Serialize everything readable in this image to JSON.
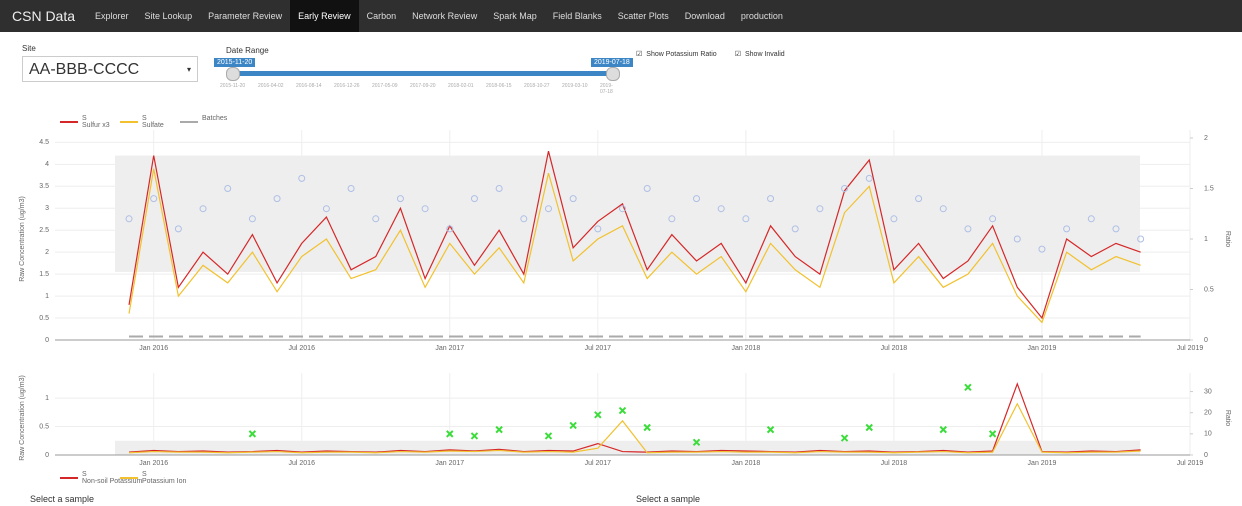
{
  "nav": {
    "brand": "CSN Data",
    "items": [
      "Explorer",
      "Site Lookup",
      "Parameter Review",
      "Early Review",
      "Carbon",
      "Network Review",
      "Spark Map",
      "Field Blanks",
      "Scatter Plots",
      "Download",
      "production"
    ],
    "active": 3
  },
  "controls": {
    "site_label": "Site",
    "site_value": "AA-BBB-CCCC",
    "date_label": "Date Range",
    "date_from": "2015-11-20",
    "date_to": "2019-07-18",
    "date_ticks": [
      "2015-11-20",
      "2016-04-02",
      "2016-08-14",
      "2016-12-26",
      "2017-05-09",
      "2017-09-20",
      "2018-02-01",
      "2018-06-15",
      "2018-10-27",
      "2019-03-10",
      "2019-07-18"
    ],
    "checkboxes": [
      "Show Potassium Ratio",
      "Show Invalid"
    ]
  },
  "footer": {
    "left": "Select a sample",
    "right": "Select a sample"
  },
  "chart_data": [
    {
      "type": "line",
      "ylabel": "Raw Concentration (ug/m3)",
      "y2label": "Ratio",
      "band": [
        1.55,
        4.2
      ],
      "x": [
        "2015-12",
        "2016-01",
        "2016-02",
        "2016-03",
        "2016-04",
        "2016-05",
        "2016-06",
        "2016-07",
        "2016-08",
        "2016-09",
        "2016-10",
        "2016-11",
        "2016-12",
        "2017-01",
        "2017-02",
        "2017-03",
        "2017-04",
        "2017-05",
        "2017-06",
        "2017-07",
        "2017-08",
        "2017-09",
        "2017-10",
        "2017-11",
        "2017-12",
        "2018-01",
        "2018-02",
        "2018-03",
        "2018-04",
        "2018-05",
        "2018-06",
        "2018-07",
        "2018-08",
        "2018-09",
        "2018-10",
        "2018-11",
        "2018-12",
        "2019-01",
        "2019-02",
        "2019-03",
        "2019-04",
        "2019-05"
      ],
      "xlim": [
        "2015-09",
        "2019-07"
      ],
      "xticks": [
        {
          "value": "2016-01",
          "label": "Jan 2016"
        },
        {
          "value": "2016-07",
          "label": "Jul 2016"
        },
        {
          "value": "2017-01",
          "label": "Jan 2017"
        },
        {
          "value": "2017-07",
          "label": "Jul 2017"
        },
        {
          "value": "2018-01",
          "label": "Jan 2018"
        },
        {
          "value": "2018-07",
          "label": "Jul 2018"
        },
        {
          "value": "2019-01",
          "label": "Jan 2019"
        },
        {
          "value": "2019-07",
          "label": "Jul 2019"
        }
      ],
      "ylim": [
        0,
        4.6
      ],
      "yticks": [
        0,
        0.5,
        1,
        1.5,
        2,
        2.5,
        3,
        3.5,
        4,
        4.5
      ],
      "y2lim": [
        0,
        2
      ],
      "y2ticks": [
        0,
        0.5,
        1,
        1.5,
        2
      ],
      "series": [
        {
          "group": "S",
          "name": "Sulfur x3",
          "color": "#d62728",
          "mode": "line",
          "values": [
            0.8,
            4.2,
            1.2,
            2.0,
            1.5,
            2.4,
            1.3,
            2.2,
            2.8,
            1.6,
            1.9,
            3.0,
            1.4,
            2.6,
            1.7,
            2.5,
            1.5,
            4.3,
            2.1,
            2.7,
            3.1,
            1.6,
            2.4,
            1.8,
            2.2,
            1.3,
            2.6,
            1.9,
            1.5,
            3.4,
            4.1,
            1.6,
            2.2,
            1.4,
            1.8,
            2.6,
            1.2,
            0.5,
            2.3,
            1.9,
            2.2,
            2.0
          ]
        },
        {
          "group": "S",
          "name": "Sulfate",
          "color": "#f2c12e",
          "mode": "line",
          "values": [
            0.6,
            3.9,
            1.0,
            1.7,
            1.3,
            2.0,
            1.1,
            1.9,
            2.3,
            1.4,
            1.6,
            2.5,
            1.2,
            2.2,
            1.5,
            2.1,
            1.3,
            3.8,
            1.8,
            2.3,
            2.6,
            1.4,
            2.0,
            1.5,
            1.9,
            1.1,
            2.2,
            1.6,
            1.2,
            2.9,
            3.5,
            1.3,
            1.9,
            1.2,
            1.5,
            2.2,
            1.0,
            0.4,
            2.0,
            1.6,
            1.9,
            1.7
          ]
        },
        {
          "name": "Batches",
          "color": "#aaaaaa",
          "mode": "dash",
          "values": [
            0.08,
            0.08,
            0.08,
            0.08,
            0.08,
            0.08,
            0.08,
            0.08,
            0.08,
            0.08,
            0.08,
            0.08,
            0.08,
            0.08,
            0.08,
            0.08,
            0.08,
            0.08,
            0.08,
            0.08,
            0.08,
            0.08,
            0.08,
            0.08,
            0.08,
            0.08,
            0.08,
            0.08,
            0.08,
            0.08,
            0.08,
            0.08,
            0.08,
            0.08,
            0.08,
            0.08,
            0.08,
            0.08,
            0.08,
            0.08,
            0.08,
            0.08
          ]
        },
        {
          "color": "#aebfe6",
          "mode": "circle",
          "axis": "y2",
          "values": [
            1.2,
            1.4,
            1.1,
            1.3,
            1.5,
            1.2,
            1.4,
            1.6,
            1.3,
            1.5,
            1.2,
            1.4,
            1.3,
            1.1,
            1.4,
            1.5,
            1.2,
            1.3,
            1.4,
            1.1,
            1.3,
            1.5,
            1.2,
            1.4,
            1.3,
            1.2,
            1.4,
            1.1,
            1.3,
            1.5,
            1.6,
            1.2,
            1.4,
            1.3,
            1.1,
            1.2,
            1.0,
            0.9,
            1.1,
            1.2,
            1.1,
            1.0
          ]
        }
      ]
    },
    {
      "type": "line",
      "ylabel": "Raw Concentration (ug/m3)",
      "y2label": "Ratio",
      "band": [
        0,
        0.25
      ],
      "x": [
        "2015-12",
        "2016-01",
        "2016-02",
        "2016-03",
        "2016-04",
        "2016-05",
        "2016-06",
        "2016-07",
        "2016-08",
        "2016-09",
        "2016-10",
        "2016-11",
        "2016-12",
        "2017-01",
        "2017-02",
        "2017-03",
        "2017-04",
        "2017-05",
        "2017-06",
        "2017-07",
        "2017-08",
        "2017-09",
        "2017-10",
        "2017-11",
        "2017-12",
        "2018-01",
        "2018-02",
        "2018-03",
        "2018-04",
        "2018-05",
        "2018-06",
        "2018-07",
        "2018-08",
        "2018-09",
        "2018-10",
        "2018-11",
        "2018-12",
        "2019-01",
        "2019-02",
        "2019-03",
        "2019-04",
        "2019-05"
      ],
      "xlim": [
        "2015-09",
        "2019-07"
      ],
      "xticks": [
        {
          "value": "2016-01",
          "label": "Jan 2016"
        },
        {
          "value": "2016-07",
          "label": "Jul 2016"
        },
        {
          "value": "2017-01",
          "label": "Jan 2017"
        },
        {
          "value": "2017-07",
          "label": "Jul 2017"
        },
        {
          "value": "2018-01",
          "label": "Jan 2018"
        },
        {
          "value": "2018-07",
          "label": "Jul 2018"
        },
        {
          "value": "2019-01",
          "label": "Jan 2019"
        },
        {
          "value": "2019-07",
          "label": "Jul 2019"
        }
      ],
      "ylim": [
        0,
        1.3
      ],
      "yticks": [
        0,
        0.5,
        1
      ],
      "y2lim": [
        0,
        35
      ],
      "y2ticks": [
        0,
        10,
        20,
        30
      ],
      "series": [
        {
          "group": "S",
          "name": "Non-soil Potassium",
          "color": "#d62728",
          "mode": "line",
          "values": [
            0.05,
            0.08,
            0.06,
            0.07,
            0.05,
            0.06,
            0.08,
            0.05,
            0.07,
            0.06,
            0.05,
            0.08,
            0.06,
            0.09,
            0.07,
            0.1,
            0.06,
            0.08,
            0.07,
            0.2,
            0.06,
            0.05,
            0.07,
            0.06,
            0.08,
            0.07,
            0.06,
            0.05,
            0.08,
            0.06,
            0.07,
            0.05,
            0.06,
            0.08,
            0.05,
            0.07,
            1.25,
            0.06,
            0.05,
            0.07,
            0.06,
            0.09
          ]
        },
        {
          "group": "S",
          "name": "Potassium Ion",
          "color": "#f2c12e",
          "mode": "line",
          "values": [
            0.04,
            0.06,
            0.05,
            0.05,
            0.04,
            0.05,
            0.06,
            0.04,
            0.05,
            0.05,
            0.04,
            0.06,
            0.05,
            0.07,
            0.06,
            0.08,
            0.05,
            0.06,
            0.05,
            0.12,
            0.6,
            0.04,
            0.05,
            0.05,
            0.06,
            0.05,
            0.05,
            0.04,
            0.06,
            0.05,
            0.05,
            0.04,
            0.05,
            0.06,
            0.04,
            0.05,
            0.9,
            0.05,
            0.04,
            0.05,
            0.05,
            0.07
          ]
        },
        {
          "color": "#3ddc3d",
          "mode": "x",
          "axis": "y2",
          "values": [
            null,
            null,
            null,
            null,
            null,
            10,
            null,
            null,
            null,
            null,
            null,
            null,
            null,
            10,
            9,
            12,
            null,
            9,
            14,
            19,
            21,
            13,
            null,
            6,
            null,
            null,
            12,
            null,
            null,
            8,
            13,
            null,
            null,
            12,
            32,
            10,
            null,
            null,
            null,
            null,
            null,
            null
          ]
        }
      ]
    }
  ]
}
